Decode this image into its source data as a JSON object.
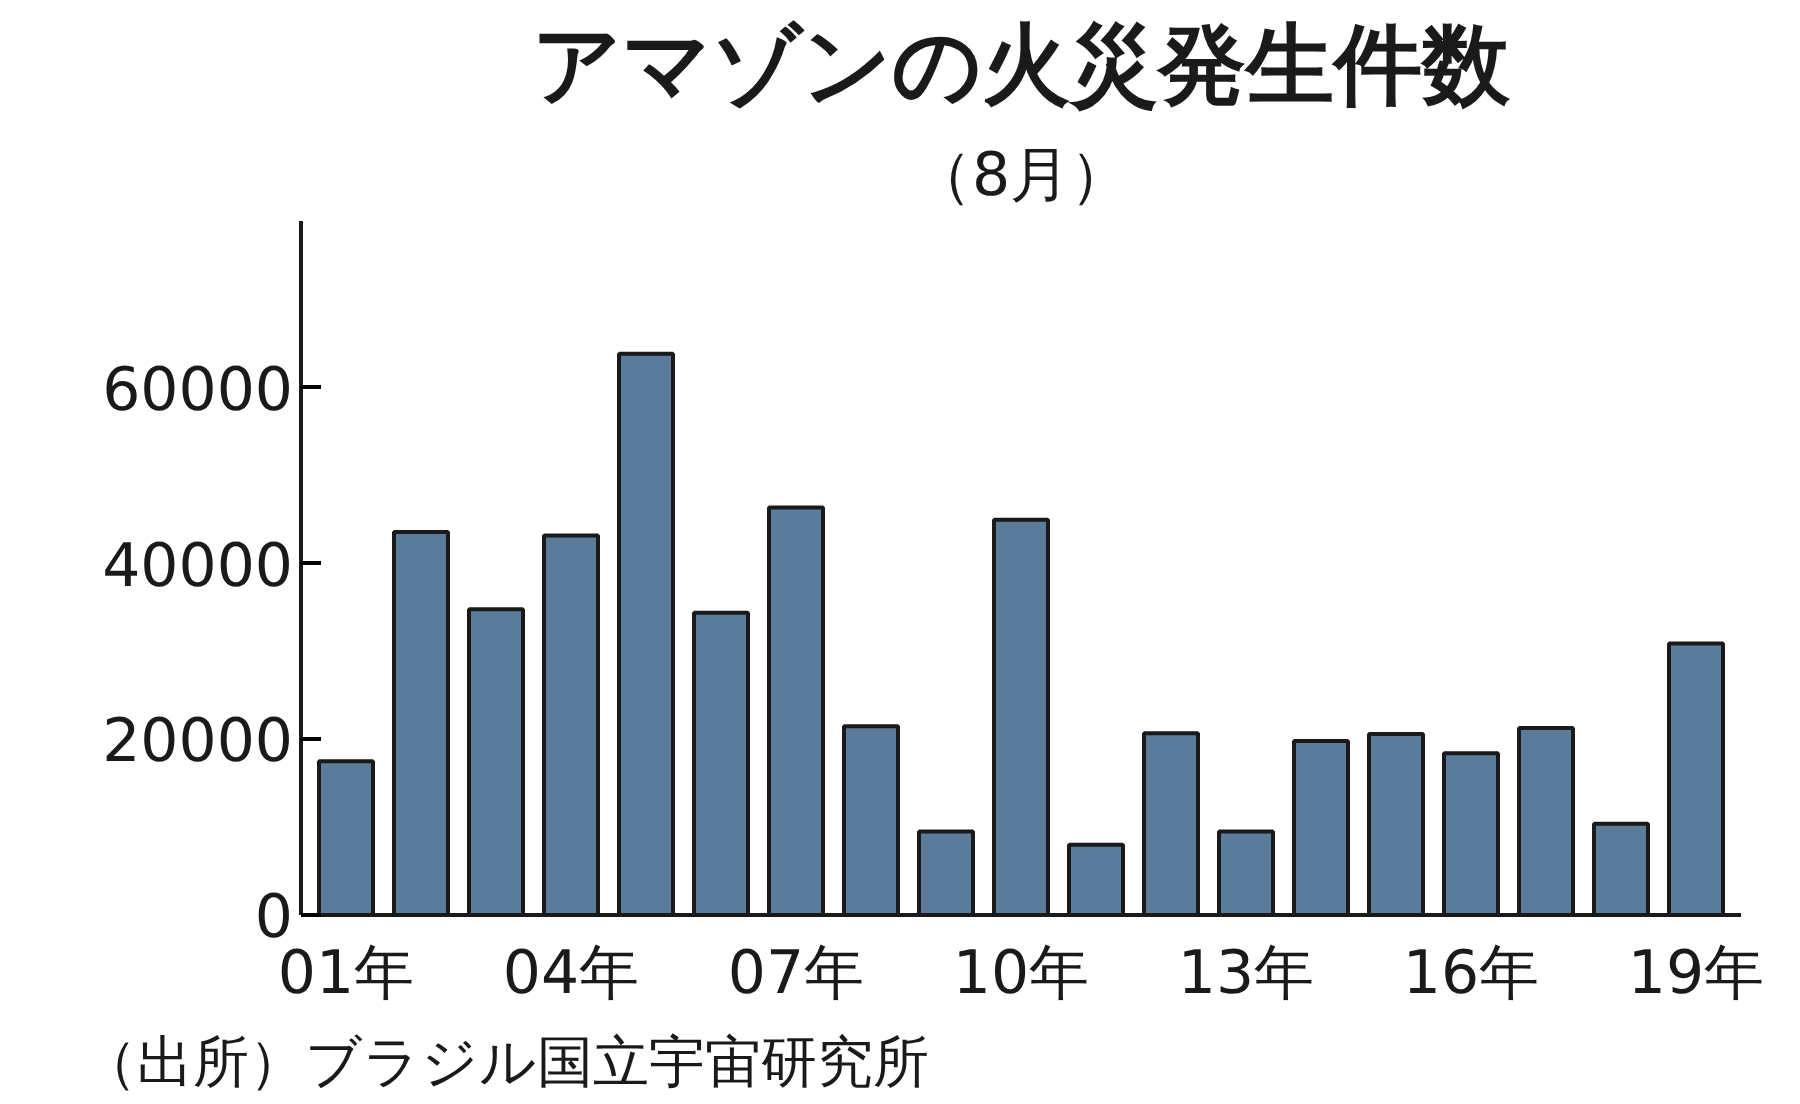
{
  "chart_data": {
    "type": "bar",
    "title": "アマゾンの火災発生件数",
    "subtitle": "（8月）",
    "categories": [
      "01年",
      null,
      null,
      "04年",
      null,
      null,
      "07年",
      null,
      null,
      "10年",
      null,
      null,
      "13年",
      null,
      null,
      "16年",
      null,
      null,
      "19年"
    ],
    "values": [
      17500,
      43600,
      34800,
      43200,
      63900,
      34400,
      46400,
      21500,
      9500,
      45000,
      8000,
      20700,
      9500,
      19800,
      20600,
      18400,
      21300,
      10400,
      30900
    ],
    "color": "#5b7b9a",
    "ylim": [
      0,
      79000
    ],
    "yticks": [
      0,
      20000,
      40000,
      60000
    ],
    "grid": false,
    "annotations": [
      "（出所）ブラジル国立宇宙研究所"
    ]
  }
}
